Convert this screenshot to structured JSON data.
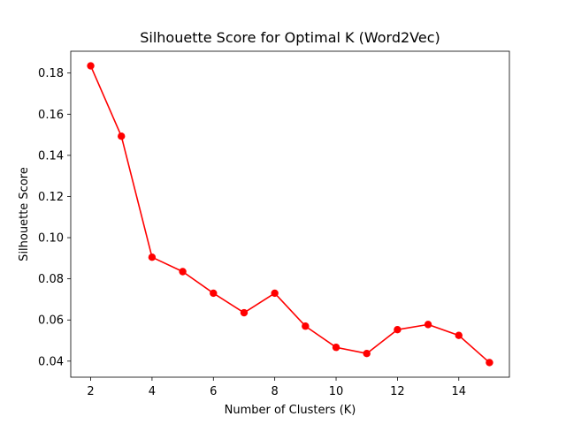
{
  "chart_data": {
    "type": "line",
    "title": "Silhouette Score for Optimal K (Word2Vec)",
    "xlabel": "Number of Clusters (K)",
    "ylabel": "Silhouette Score",
    "x": [
      2,
      3,
      4,
      5,
      6,
      7,
      8,
      9,
      10,
      11,
      12,
      13,
      14,
      15
    ],
    "series": [
      {
        "values": [
          0.1835,
          0.1493,
          0.0905,
          0.0835,
          0.073,
          0.0635,
          0.073,
          0.057,
          0.0467,
          0.0437,
          0.0553,
          0.0578,
          0.0525,
          0.0393
        ],
        "color": "#ff0000",
        "marker": "circle"
      }
    ],
    "xlim": [
      1.35,
      15.65
    ],
    "ylim": [
      0.0322,
      0.1906
    ],
    "xticks": [
      2,
      4,
      6,
      8,
      10,
      12,
      14
    ],
    "yticks": [
      0.04,
      0.06,
      0.08,
      0.1,
      0.12,
      0.14,
      0.16,
      0.18
    ],
    "xtick_labels": [
      "2",
      "4",
      "6",
      "8",
      "10",
      "12",
      "14"
    ],
    "ytick_labels": [
      "0.04",
      "0.06",
      "0.08",
      "0.10",
      "0.12",
      "0.14",
      "0.16",
      "0.18"
    ],
    "grid": false,
    "legend": false
  }
}
